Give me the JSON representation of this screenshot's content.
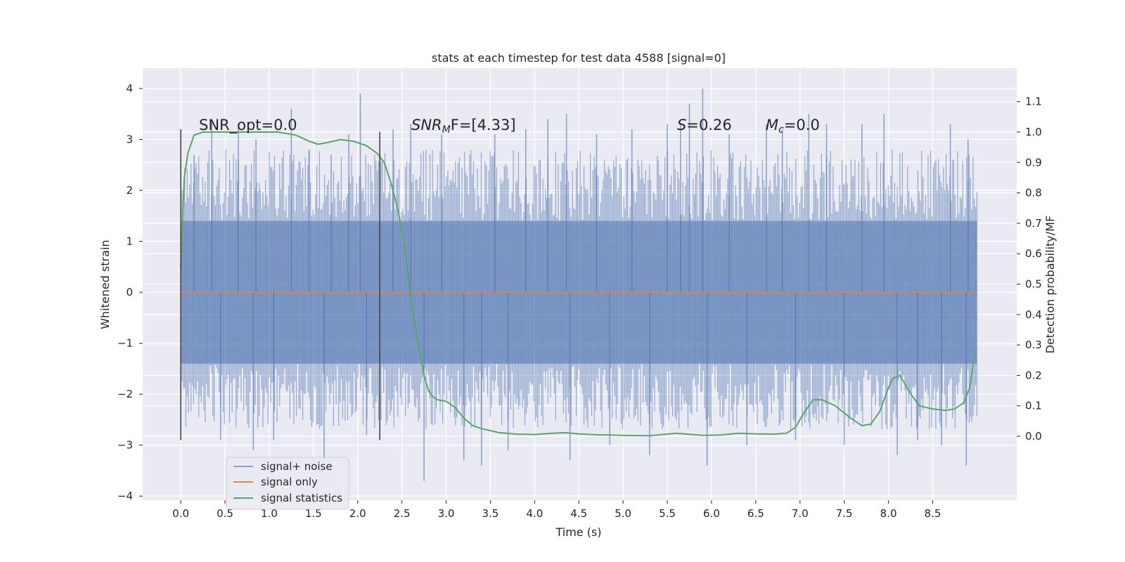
{
  "chart_data": {
    "type": "line",
    "title": "stats at each timestep for test data 4588 [signal=0]",
    "xlabel": "Time (s)",
    "ylabel": "Whitened strain",
    "y2label": "Detection probability/MF",
    "xlim": [
      -0.43,
      9.45
    ],
    "ylim": [
      -4.08,
      4.4
    ],
    "y2lim": [
      -0.21,
      1.21
    ],
    "xticks": [
      "0.0",
      "0.5",
      "1.0",
      "1.5",
      "2.0",
      "2.5",
      "3.0",
      "3.5",
      "4.0",
      "4.5",
      "5.0",
      "5.5",
      "6.0",
      "6.5",
      "7.0",
      "7.5",
      "8.0",
      "8.5"
    ],
    "yticks": [
      "4",
      "3",
      "2",
      "1",
      "0",
      "−1",
      "−2",
      "−3",
      "−4"
    ],
    "y2ticks": [
      "1.1",
      "1.0",
      "0.9",
      "0.8",
      "0.7",
      "0.6",
      "0.5",
      "0.4",
      "0.3",
      "0.2",
      "0.1",
      "0.0"
    ],
    "grid": true,
    "legend_position": "lower-left",
    "annotations": {
      "snr_opt": "SNR_opt=0.0",
      "snr_mf_base": "SNR",
      "snr_mf_sub": "M",
      "snr_mf_rest": "F=[4.33]",
      "s_base": "S",
      "s_rest": "=0.26",
      "mc_base": "M",
      "mc_sub": "c",
      "mc_rest": "=0.0"
    },
    "vertical_lines": [
      {
        "x": 0.0,
        "y_range": [
          -2.9,
          3.2
        ]
      },
      {
        "x": 2.25,
        "y_range": [
          -2.9,
          3.15
        ]
      }
    ],
    "series": [
      {
        "name": "signal+ noise",
        "color": "#4c72b0",
        "axis": "left",
        "x_range": [
          0.0,
          9.0
        ],
        "core_band": [
          -1.4,
          1.4
        ],
        "spikes": [
          {
            "x": 0.15,
            "y": 2.7
          },
          {
            "x": 0.35,
            "y": 3.4
          },
          {
            "x": 0.45,
            "y": -2.9
          },
          {
            "x": 0.65,
            "y": 3.3
          },
          {
            "x": 0.85,
            "y": 3.0
          },
          {
            "x": 0.82,
            "y": -3.1
          },
          {
            "x": 1.05,
            "y": -2.9
          },
          {
            "x": 1.25,
            "y": 3.6
          },
          {
            "x": 1.45,
            "y": 2.8
          },
          {
            "x": 1.62,
            "y": -3.3
          },
          {
            "x": 1.7,
            "y": 2.7
          },
          {
            "x": 1.9,
            "y": 3.1
          },
          {
            "x": 2.03,
            "y": 3.9
          },
          {
            "x": 2.1,
            "y": -2.8
          },
          {
            "x": 2.4,
            "y": 3.2
          },
          {
            "x": 2.6,
            "y": 3.3
          },
          {
            "x": 2.75,
            "y": -3.7
          },
          {
            "x": 2.95,
            "y": 3.1
          },
          {
            "x": 3.2,
            "y": -3.3
          },
          {
            "x": 3.4,
            "y": -3.4
          },
          {
            "x": 3.55,
            "y": 3.1
          },
          {
            "x": 3.7,
            "y": -3.1
          },
          {
            "x": 3.9,
            "y": 3.2
          },
          {
            "x": 4.15,
            "y": 3.4
          },
          {
            "x": 4.36,
            "y": 3.5
          },
          {
            "x": 4.4,
            "y": -3.3
          },
          {
            "x": 4.7,
            "y": 3.1
          },
          {
            "x": 4.85,
            "y": -3.0
          },
          {
            "x": 5.1,
            "y": 3.2
          },
          {
            "x": 5.3,
            "y": -3.2
          },
          {
            "x": 5.5,
            "y": 3.3
          },
          {
            "x": 5.65,
            "y": 3.3
          },
          {
            "x": 5.75,
            "y": 3.7
          },
          {
            "x": 5.9,
            "y": 4.0
          },
          {
            "x": 5.95,
            "y": -3.4
          },
          {
            "x": 6.2,
            "y": 3.1
          },
          {
            "x": 6.4,
            "y": -3.0
          },
          {
            "x": 6.62,
            "y": 3.3
          },
          {
            "x": 6.8,
            "y": 3.2
          },
          {
            "x": 6.95,
            "y": -2.9
          },
          {
            "x": 7.1,
            "y": 3.5
          },
          {
            "x": 7.3,
            "y": 3.3
          },
          {
            "x": 7.5,
            "y": -3.0
          },
          {
            "x": 7.7,
            "y": 3.3
          },
          {
            "x": 7.95,
            "y": 3.5
          },
          {
            "x": 8.1,
            "y": -3.2
          },
          {
            "x": 8.33,
            "y": -2.9
          },
          {
            "x": 8.6,
            "y": -3.0
          },
          {
            "x": 8.7,
            "y": 3.3
          },
          {
            "x": 8.9,
            "y": 3.0
          },
          {
            "x": 8.88,
            "y": -3.4
          }
        ]
      },
      {
        "name": "signal only",
        "color": "#dd8452",
        "axis": "left",
        "x": [
          0.0,
          9.0
        ],
        "y": [
          0.0,
          0.0
        ]
      },
      {
        "name": "signal statistics",
        "color": "#55a868",
        "axis": "right",
        "x": [
          0.0,
          0.04,
          0.08,
          0.15,
          0.25,
          0.5,
          0.8,
          1.1,
          1.3,
          1.45,
          1.55,
          1.65,
          1.8,
          1.95,
          2.1,
          2.22,
          2.3,
          2.38,
          2.45,
          2.5,
          2.55,
          2.6,
          2.65,
          2.7,
          2.75,
          2.8,
          2.85,
          2.9,
          3.0,
          3.1,
          3.2,
          3.3,
          3.4,
          3.6,
          3.8,
          4.0,
          4.2,
          4.35,
          4.5,
          4.7,
          5.0,
          5.3,
          5.6,
          5.9,
          6.1,
          6.3,
          6.5,
          6.7,
          6.85,
          6.95,
          7.05,
          7.15,
          7.25,
          7.4,
          7.55,
          7.7,
          7.8,
          7.9,
          8.0,
          8.05,
          8.13,
          8.25,
          8.35,
          8.5,
          8.65,
          8.75,
          8.85,
          8.92,
          8.97
        ],
        "y": [
          0.55,
          0.85,
          0.93,
          0.99,
          1.0,
          1.0,
          1.0,
          1.0,
          0.99,
          0.97,
          0.96,
          0.965,
          0.975,
          0.97,
          0.955,
          0.93,
          0.9,
          0.83,
          0.75,
          0.68,
          0.58,
          0.46,
          0.36,
          0.28,
          0.2,
          0.15,
          0.13,
          0.12,
          0.115,
          0.095,
          0.06,
          0.035,
          0.025,
          0.012,
          0.007,
          0.006,
          0.01,
          0.012,
          0.008,
          0.005,
          0.003,
          0.002,
          0.01,
          0.003,
          0.004,
          0.01,
          0.008,
          0.007,
          0.01,
          0.03,
          0.08,
          0.12,
          0.12,
          0.1,
          0.065,
          0.035,
          0.04,
          0.08,
          0.16,
          0.19,
          0.2,
          0.14,
          0.1,
          0.09,
          0.085,
          0.09,
          0.11,
          0.16,
          0.26
        ]
      }
    ]
  }
}
